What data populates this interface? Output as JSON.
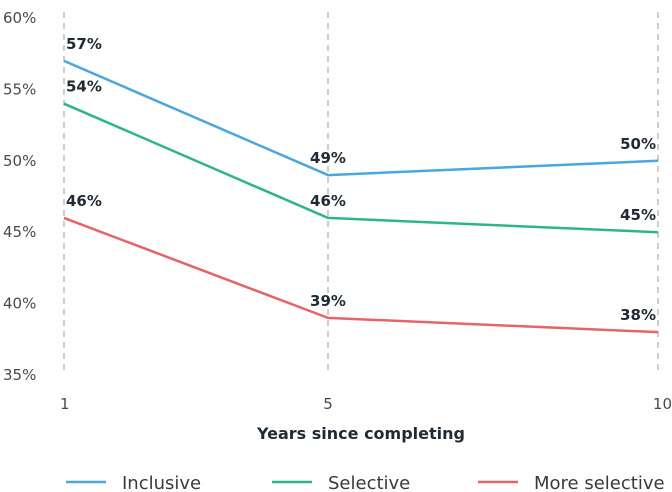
{
  "chart_data": {
    "type": "line",
    "x": [
      1,
      5,
      10
    ],
    "xlabel": "Years since completing",
    "ylim": [
      35,
      60
    ],
    "yticks": [
      "35%",
      "40%",
      "45%",
      "50%",
      "55%",
      "60%"
    ],
    "xticks": [
      "1",
      "5",
      "10"
    ],
    "grid": "vertical-dashed",
    "legend_position": "bottom",
    "series": [
      {
        "name": "Inclusive",
        "color": "#4aa6dc",
        "values": [
          57,
          49,
          50
        ],
        "labels": [
          "57%",
          "49%",
          "50%"
        ]
      },
      {
        "name": "Selective",
        "color": "#2db58a",
        "values": [
          54,
          46,
          45
        ],
        "labels": [
          "54%",
          "46%",
          "45%"
        ]
      },
      {
        "name": "More selective",
        "color": "#e5646a",
        "values": [
          46,
          39,
          38
        ],
        "labels": [
          "46%",
          "39%",
          "38%"
        ]
      }
    ]
  }
}
